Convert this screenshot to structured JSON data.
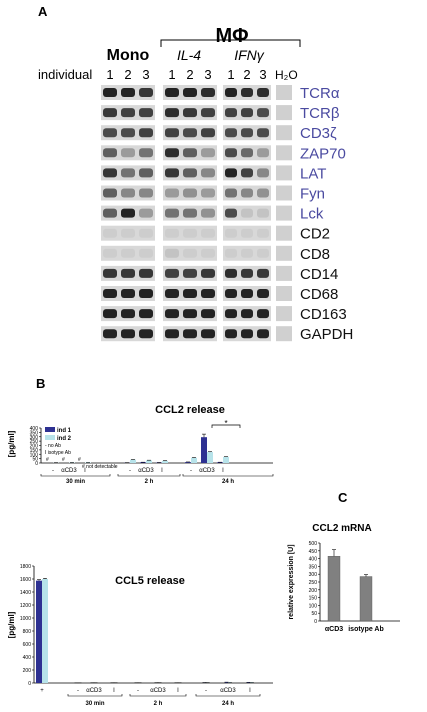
{
  "panel_a": {
    "label": "A",
    "group_header": "MΦ",
    "mono_label": "Mono",
    "il4_label": "IL-4",
    "ifn_label": "IFNγ",
    "individual_label": "individual",
    "lane_numbers": [
      "1",
      "2",
      "3"
    ],
    "h2o_label": "H₂O",
    "genes": [
      {
        "name": "TCRα",
        "color": "#4a4aa0"
      },
      {
        "name": "TCRβ",
        "color": "#4a4aa0"
      },
      {
        "name": "CD3ζ",
        "color": "#4a4aa0"
      },
      {
        "name": "ZAP70",
        "color": "#4a4aa0"
      },
      {
        "name": "LAT",
        "color": "#4a4aa0"
      },
      {
        "name": "Fyn",
        "color": "#4a4aa0"
      },
      {
        "name": "Lck",
        "color": "#4a4aa0"
      },
      {
        "name": "CD2",
        "color": "#111111"
      },
      {
        "name": "CD8",
        "color": "#111111"
      },
      {
        "name": "CD14",
        "color": "#111111"
      },
      {
        "name": "CD68",
        "color": "#111111"
      },
      {
        "name": "CD163",
        "color": "#111111"
      },
      {
        "name": "GAPDH",
        "color": "#111111"
      }
    ],
    "band_intensity": [
      [
        [
          0.9,
          0.9,
          0.8
        ],
        [
          0.9,
          0.9,
          0.85
        ],
        [
          0.9,
          0.85,
          0.85
        ]
      ],
      [
        [
          0.8,
          0.75,
          0.75
        ],
        [
          0.85,
          0.8,
          0.75
        ],
        [
          0.75,
          0.75,
          0.7
        ]
      ],
      [
        [
          0.7,
          0.7,
          0.75
        ],
        [
          0.75,
          0.7,
          0.75
        ],
        [
          0.7,
          0.7,
          0.7
        ]
      ],
      [
        [
          0.6,
          0.3,
          0.5
        ],
        [
          0.85,
          0.6,
          0.3
        ],
        [
          0.7,
          0.55,
          0.3
        ]
      ],
      [
        [
          0.8,
          0.5,
          0.6
        ],
        [
          0.8,
          0.6,
          0.4
        ],
        [
          0.9,
          0.75,
          0.4
        ]
      ],
      [
        [
          0.6,
          0.4,
          0.4
        ],
        [
          0.3,
          0.35,
          0.3
        ],
        [
          0.5,
          0.4,
          0.35
        ]
      ],
      [
        [
          0.6,
          0.9,
          0.3
        ],
        [
          0.5,
          0.5,
          0.35
        ],
        [
          0.7,
          0.1,
          0.1
        ]
      ],
      [
        [
          0.05,
          0.05,
          0.05
        ],
        [
          0.05,
          0.05,
          0.05
        ],
        [
          0.05,
          0.05,
          0.05
        ]
      ],
      [
        [
          0.05,
          0.05,
          0.05
        ],
        [
          0.1,
          0.05,
          0.05
        ],
        [
          0.05,
          0.05,
          0.05
        ]
      ],
      [
        [
          0.8,
          0.8,
          0.8
        ],
        [
          0.75,
          0.75,
          0.8
        ],
        [
          0.85,
          0.8,
          0.8
        ]
      ],
      [
        [
          0.9,
          0.9,
          0.9
        ],
        [
          0.9,
          0.9,
          0.9
        ],
        [
          0.9,
          0.9,
          0.9
        ]
      ],
      [
        [
          0.9,
          0.9,
          0.9
        ],
        [
          0.9,
          0.9,
          0.9
        ],
        [
          0.9,
          0.9,
          0.9
        ]
      ],
      [
        [
          0.9,
          0.9,
          0.9
        ],
        [
          0.9,
          0.9,
          0.9
        ],
        [
          0.9,
          0.9,
          0.9
        ]
      ]
    ]
  },
  "panel_b": {
    "label": "B",
    "ccl2": {
      "title": "CCL2 release",
      "ylabel": "[pg/ml]",
      "yticks": [
        "0",
        "50",
        "100",
        "150",
        "200",
        "250",
        "300",
        "350",
        "400"
      ],
      "legend": [
        {
          "name": "ind 1",
          "color": "#2e3192"
        },
        {
          "name": "ind 2",
          "color": "#b7e3ea"
        }
      ],
      "notes": [
        "- no Ab",
        "I isotype Ab"
      ],
      "not_detectable": "# not detectable",
      "hash_mark": "#",
      "significance": "*",
      "bar_labels": [
        "-",
        "αCD3",
        "I",
        "-",
        "αCD3",
        "I",
        "-",
        "αCD3",
        "I"
      ],
      "time_labels": [
        "30 min",
        "2 h",
        "24 h"
      ]
    },
    "ccl5": {
      "title": "CCL5 release",
      "ylabel": "[pg/ml]",
      "yticks": [
        "0",
        "200",
        "400",
        "600",
        "800",
        "1000",
        "1200",
        "1400",
        "1600",
        "1800"
      ],
      "bar_labels": [
        "+",
        "-",
        "αCD3",
        "I",
        "-",
        "αCD3",
        "I",
        "-",
        "αCD3",
        "I"
      ],
      "time_labels": [
        "30 min",
        "2 h",
        "24 h"
      ]
    }
  },
  "panel_c": {
    "label": "C",
    "title": "CCL2 mRNA",
    "ylabel": "relative expression [U]",
    "yticks": [
      "0",
      "50",
      "100",
      "150",
      "200",
      "250",
      "300",
      "350",
      "400",
      "450",
      "500"
    ]
  },
  "chart_data": [
    {
      "type": "bar",
      "title": "CCL2 release",
      "ylabel": "[pg/ml]",
      "ylim": [
        0,
        400
      ],
      "categories": [
        "30 min -",
        "30 min αCD3",
        "30 min I",
        "2 h -",
        "2 h αCD3",
        "2 h I",
        "24 h -",
        "24 h αCD3",
        "24 h I"
      ],
      "series": [
        {
          "name": "ind 1",
          "values": [
            0,
            0,
            0,
            3,
            8,
            5,
            10,
            295,
            8
          ],
          "errors": [
            0,
            0,
            0,
            1,
            1,
            1,
            2,
            35,
            1
          ]
        },
        {
          "name": "ind 2",
          "values": [
            3,
            5,
            6,
            38,
            30,
            25,
            60,
            125,
            70
          ],
          "errors": [
            1,
            1,
            1,
            2,
            2,
            2,
            3,
            4,
            2
          ]
        }
      ],
      "not_detectable": [
        [
          0,
          0
        ],
        [
          1,
          0
        ],
        [
          2,
          0
        ]
      ]
    },
    {
      "type": "bar",
      "title": "CCL5 release",
      "ylabel": "[pg/ml]",
      "ylim": [
        0,
        1800
      ],
      "categories": [
        "+",
        "30 min -",
        "30 min αCD3",
        "30 min I",
        "2 h -",
        "2 h αCD3",
        "2 h I",
        "24 h -",
        "24 h αCD3",
        "24 h I"
      ],
      "series": [
        {
          "name": "ind 1",
          "values": [
            1575,
            2,
            3,
            3,
            3,
            4,
            3,
            5,
            10,
            8
          ],
          "errors": [
            15,
            1,
            1,
            1,
            1,
            1,
            1,
            2,
            3,
            2
          ]
        },
        {
          "name": "ind 2",
          "values": [
            1600,
            2,
            3,
            3,
            3,
            4,
            3,
            5,
            8,
            8
          ],
          "errors": [
            10,
            1,
            1,
            1,
            1,
            1,
            1,
            2,
            3,
            2
          ]
        }
      ]
    },
    {
      "type": "bar",
      "title": "CCL2 mRNA",
      "ylabel": "relative expression [U]",
      "ylim": [
        0,
        500
      ],
      "categories": [
        "αCD3",
        "isotype Ab"
      ],
      "values": [
        415,
        285
      ],
      "errors": [
        42,
        12
      ],
      "color": "#808080"
    }
  ]
}
